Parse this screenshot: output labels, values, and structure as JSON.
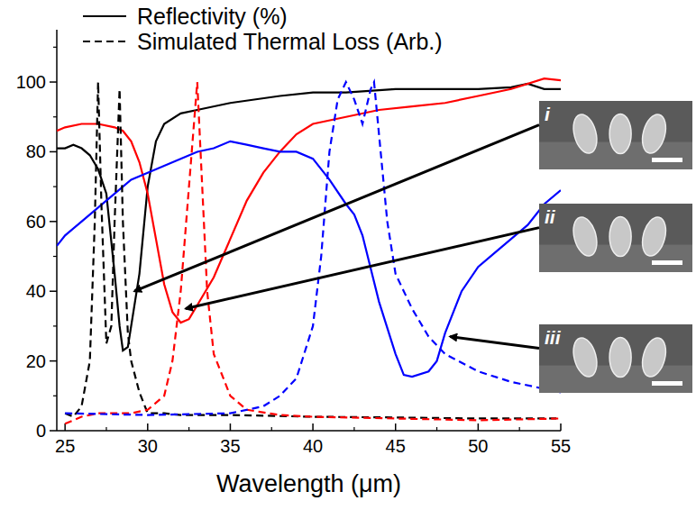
{
  "chart_data": {
    "type": "line",
    "x_label": "Wavelength (μm)",
    "xlim": [
      24.5,
      55
    ],
    "xticks": [
      25,
      30,
      35,
      40,
      45,
      50,
      55
    ],
    "ylim": [
      0,
      115
    ],
    "yticks": [
      0,
      20,
      40,
      60,
      80,
      100
    ],
    "grid": false,
    "legend": "upper left",
    "series": [
      {
        "name": "Reflectivity (%)",
        "color": "#000000",
        "line_style": "solid",
        "x": [
          24.5,
          25,
          25.5,
          26,
          26.5,
          27,
          27.5,
          28,
          28.3,
          28.5,
          28.8,
          29,
          29.5,
          30,
          30.5,
          31,
          32,
          33,
          35,
          38,
          40,
          42,
          45,
          48,
          50,
          52,
          53,
          54,
          55
        ],
        "values": [
          81,
          81,
          82,
          81,
          79,
          75,
          68,
          45,
          30,
          23,
          24,
          30,
          45,
          70,
          83,
          88,
          91,
          92,
          94,
          96,
          97,
          97,
          98,
          98,
          98,
          98.5,
          99.5,
          98,
          98
        ]
      },
      {
        "name": "Reflectivity (%)",
        "color": "#ff0000",
        "line_style": "solid",
        "x": [
          24.5,
          25,
          26,
          27,
          28,
          28.5,
          29,
          29.5,
          30,
          30.5,
          31,
          31.5,
          32,
          32.5,
          33,
          34,
          35,
          36,
          37,
          38,
          39,
          40,
          42,
          44,
          46,
          48,
          50,
          52,
          54,
          55
        ],
        "values": [
          86,
          87,
          88,
          88,
          87,
          86,
          83,
          77,
          68,
          55,
          42,
          34,
          31,
          32,
          36,
          44,
          55,
          66,
          74,
          80,
          85,
          88,
          90,
          92,
          93,
          94,
          96,
          98,
          101,
          100.5
        ]
      },
      {
        "name": "Reflectivity (%)",
        "color": "#0000ff",
        "line_style": "solid",
        "x": [
          24.5,
          25,
          26,
          27,
          28,
          29,
          30,
          31,
          32,
          33,
          34,
          35,
          36,
          37,
          38,
          39,
          40,
          41,
          42,
          42.5,
          43,
          44,
          45,
          45.5,
          46,
          47,
          47.5,
          48,
          49,
          50,
          51,
          52,
          53,
          54,
          55
        ],
        "values": [
          53,
          56,
          60,
          64,
          68,
          72,
          74,
          76,
          78,
          80,
          81,
          83,
          82,
          81,
          80,
          80,
          78,
          72,
          65,
          62,
          56,
          37,
          22,
          16,
          15.5,
          17,
          20,
          28,
          40,
          47,
          51,
          55,
          59,
          65,
          69
        ]
      },
      {
        "name": "Simulated Thermal Loss (Arb.)",
        "color": "#000000",
        "line_style": "dashed",
        "x": [
          25,
          25.5,
          26,
          26.5,
          26.8,
          27,
          27.2,
          27.5,
          27.8,
          28,
          28.3,
          28.5,
          28.8,
          29,
          29.5,
          30,
          31,
          32,
          35,
          40,
          45,
          50,
          55
        ],
        "values": [
          5,
          4,
          7,
          20,
          60,
          100,
          65,
          25,
          30,
          60,
          98,
          60,
          28,
          20,
          11,
          5,
          5,
          4.5,
          4.5,
          4,
          3.8,
          3.5,
          3.5
        ]
      },
      {
        "name": "Simulated Thermal Loss (Arb.)",
        "color": "#ff0000",
        "line_style": "dashed",
        "x": [
          25,
          26,
          27,
          28,
          29,
          30,
          31,
          31.5,
          32,
          32.5,
          33,
          33.3,
          33.6,
          34,
          35,
          36,
          38,
          40,
          45,
          50,
          55
        ],
        "values": [
          2,
          4,
          5,
          5,
          5,
          6,
          10,
          20,
          40,
          70,
          100,
          70,
          40,
          22,
          10,
          6,
          4.5,
          4,
          3.5,
          3,
          3.5
        ]
      },
      {
        "name": "Simulated Thermal Loss (Arb.)",
        "color": "#0000ff",
        "line_style": "dashed",
        "x": [
          25,
          30,
          35,
          37,
          38,
          39,
          40,
          40.5,
          41,
          41.5,
          42,
          42.5,
          43,
          43.5,
          43.7,
          44,
          44.5,
          45,
          46,
          47,
          48,
          50,
          52,
          55
        ],
        "values": [
          5,
          4.5,
          5,
          7,
          10,
          15,
          30,
          50,
          80,
          95,
          100,
          95,
          88,
          98,
          100,
          85,
          60,
          45,
          35,
          27,
          22,
          17,
          14,
          11
        ]
      }
    ],
    "annotations": [
      {
        "text": "i",
        "x": 29.2,
        "y": 40
      },
      {
        "text": "ii",
        "x": 32.3,
        "y": 35
      },
      {
        "text": "iii",
        "x": 48.3,
        "y": 27
      }
    ]
  }
}
